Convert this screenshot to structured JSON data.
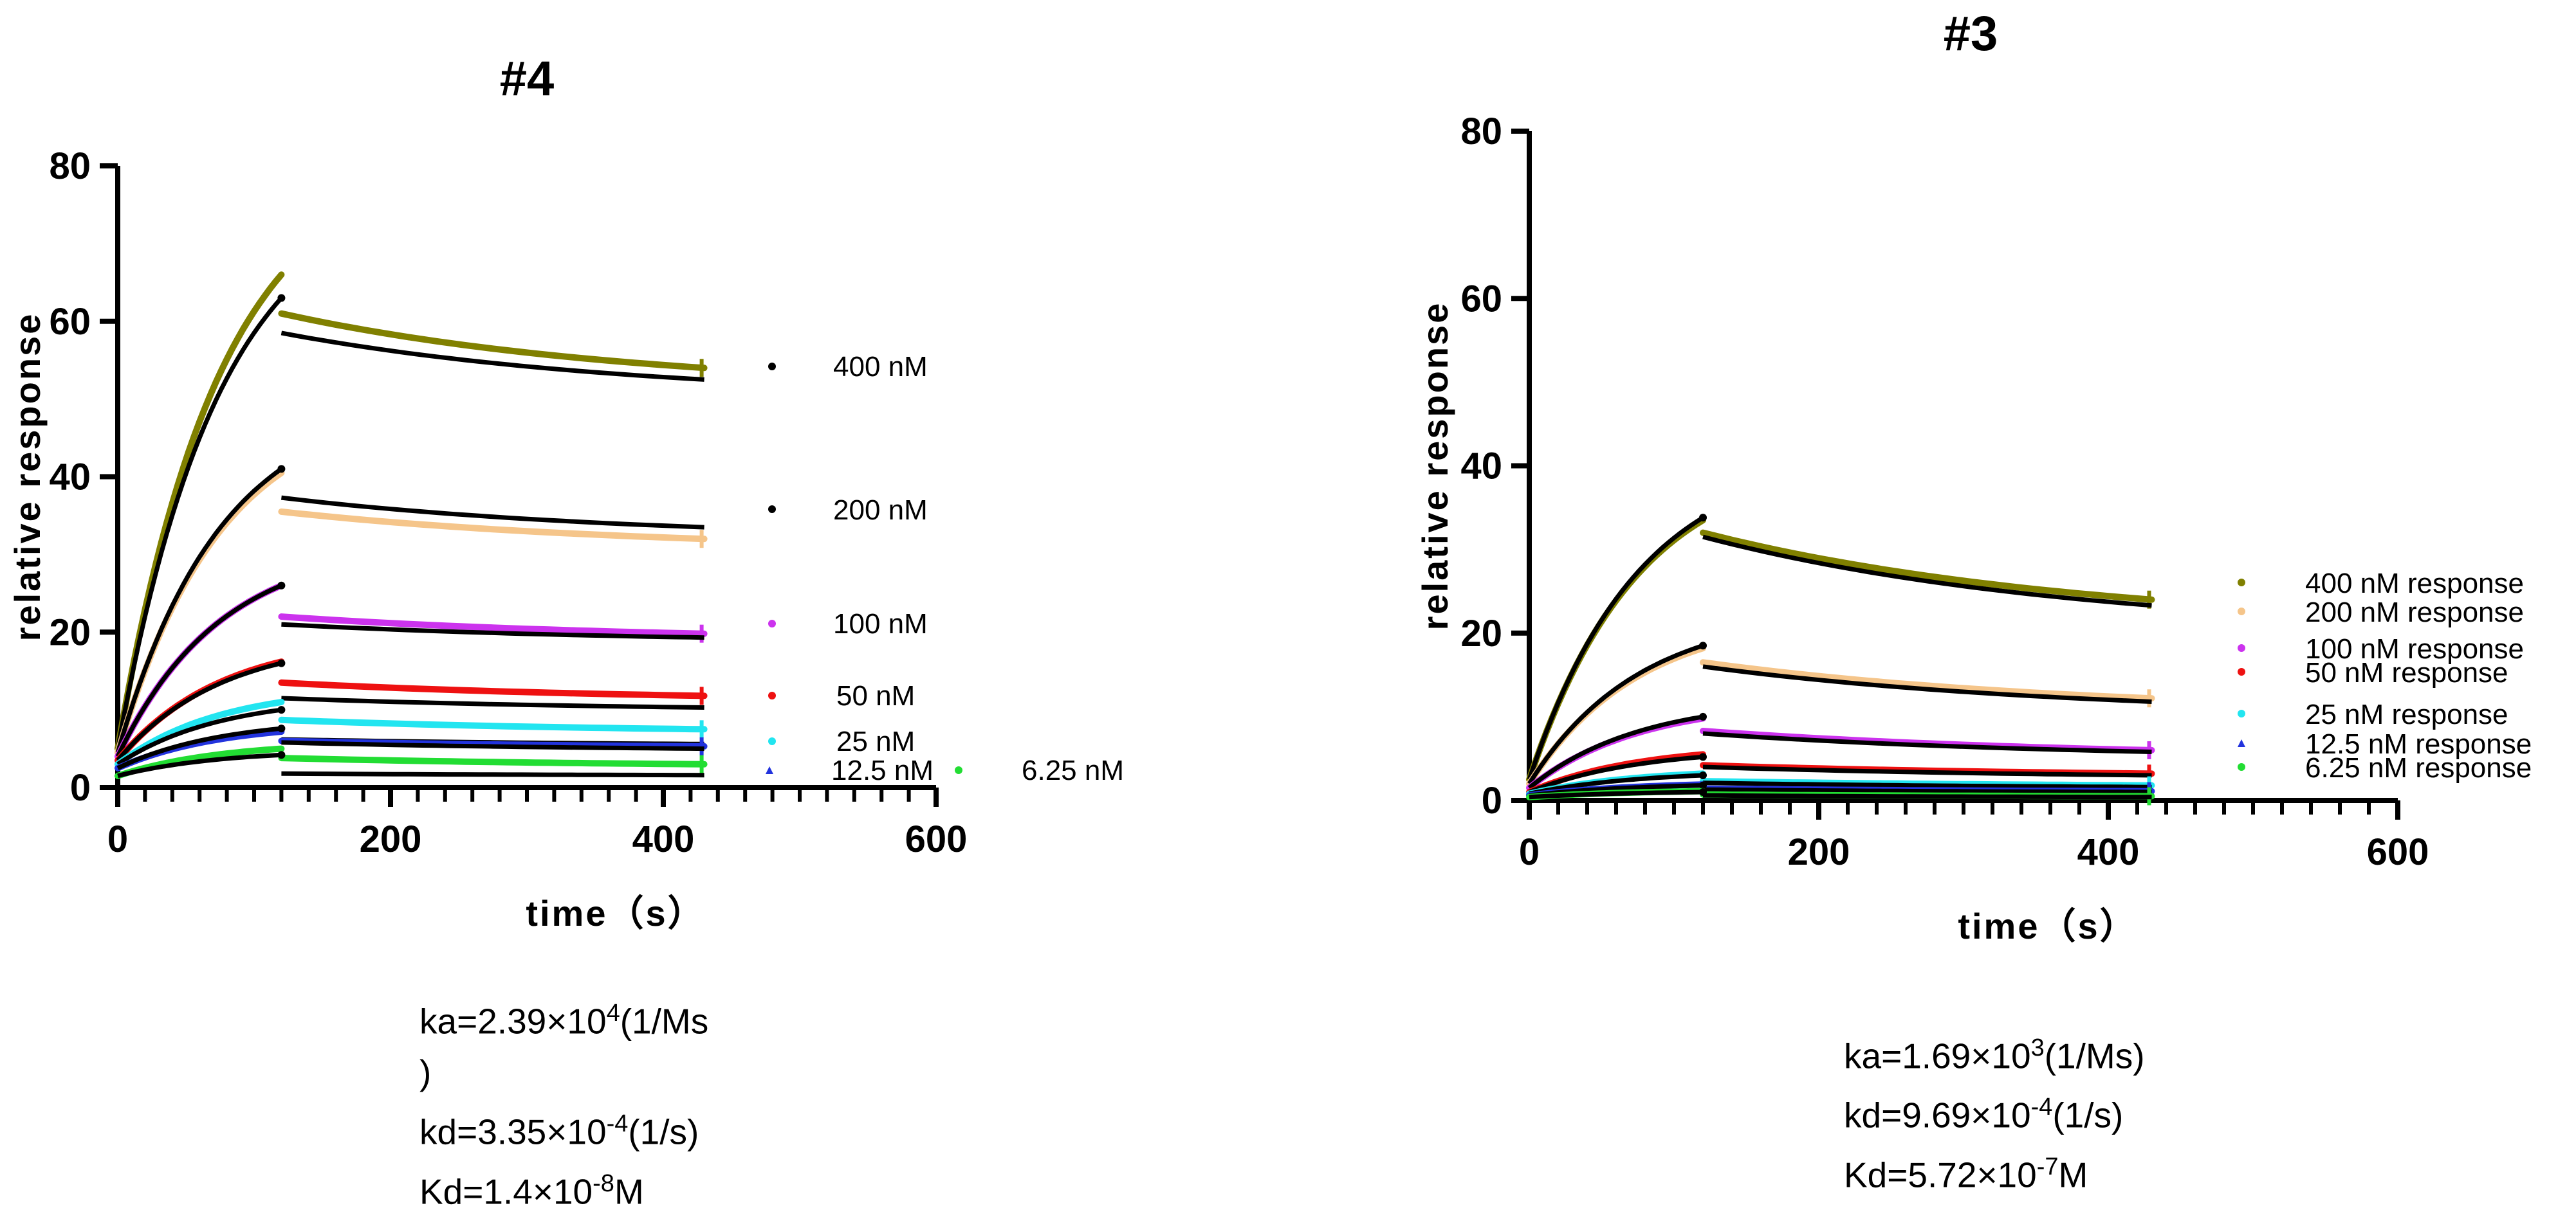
{
  "colors": {
    "400": "#808000",
    "200": "#F5C58A",
    "100": "#CC33EE",
    "50": "#EE1111",
    "25": "#22E5F0",
    "12.5": "#2233DD",
    "6.25": "#22DD33",
    "fit": "#000000"
  },
  "chart_data": [
    {
      "type": "line",
      "title": "#4",
      "xlabel": "time（s）",
      "ylabel": "relative response",
      "xlim": [
        0,
        600
      ],
      "ylim": [
        0,
        80
      ],
      "xticks": [
        "0",
        "200",
        "400",
        "600"
      ],
      "yticks": [
        "0",
        "20",
        "40",
        "60",
        "80"
      ],
      "association_end": 120,
      "dissociation_end": 430,
      "series": [
        {
          "name": "400 nM",
          "color_key": "400",
          "start": 5,
          "assoc_end": 66,
          "dissoc_start": 61,
          "dissoc_end": 54,
          "fit_start": 5,
          "fit_assoc_end": 63,
          "fit_dissoc_start": 58.5,
          "fit_dissoc_end": 52.5
        },
        {
          "name": "200 nM",
          "color_key": "200",
          "start": 4.5,
          "assoc_end": 40.5,
          "dissoc_start": 35.5,
          "dissoc_end": 32,
          "fit_start": 4.5,
          "fit_assoc_end": 41,
          "fit_dissoc_start": 37.3,
          "fit_dissoc_end": 33.5
        },
        {
          "name": "100 nM",
          "color_key": "100",
          "start": 4,
          "assoc_end": 26,
          "dissoc_start": 22,
          "dissoc_end": 19.8,
          "fit_start": 4,
          "fit_assoc_end": 26,
          "fit_dissoc_start": 21,
          "fit_dissoc_end": 19.3
        },
        {
          "name": "50 nM",
          "color_key": "50",
          "start": 3.5,
          "assoc_end": 16.2,
          "dissoc_start": 13.5,
          "dissoc_end": 11.8,
          "fit_start": 3.5,
          "fit_assoc_end": 16,
          "fit_dissoc_start": 11.5,
          "fit_dissoc_end": 10.3
        },
        {
          "name": "25 nM",
          "color_key": "25",
          "start": 3,
          "assoc_end": 11,
          "dissoc_start": 8.7,
          "dissoc_end": 7.5,
          "fit_start": 3,
          "fit_assoc_end": 10,
          "fit_dissoc_start": 6.2,
          "fit_dissoc_end": 5.6
        },
        {
          "name": "12.5 nM",
          "color_key": "12.5",
          "start": 2.5,
          "assoc_end": 7.2,
          "dissoc_start": 6,
          "dissoc_end": 5.3,
          "fit_start": 2.5,
          "fit_assoc_end": 7.6,
          "fit_dissoc_start": 5.8,
          "fit_dissoc_end": 5
        },
        {
          "name": "6.25 nM",
          "color_key": "6.25",
          "start": 1.5,
          "assoc_end": 5,
          "dissoc_start": 3.8,
          "dissoc_end": 3,
          "fit_start": 1.5,
          "fit_assoc_end": 4.2,
          "fit_dissoc_start": 1.8,
          "fit_dissoc_end": 1.6
        }
      ],
      "legend": [
        "400 nM",
        "200 nM",
        "100 nM",
        "50 nM",
        "25 nM",
        "12.5 nM",
        "6.25 nM"
      ],
      "kinetics": {
        "ka": {
          "prefix": "ka=2.39×10",
          "exp": "4",
          "suffix": "(1/Ms",
          "wrap": ")"
        },
        "kd": {
          "prefix": "kd=3.35×10",
          "exp": "-4",
          "suffix": "(1/s)"
        },
        "Kd": {
          "prefix": "Kd=1.4×10",
          "exp": "-8",
          "suffix": "M"
        }
      }
    },
    {
      "type": "line",
      "title": "#3",
      "xlabel": "time（s）",
      "ylabel": "relative response",
      "xlim": [
        0,
        600
      ],
      "ylim": [
        0,
        80
      ],
      "xticks": [
        "0",
        "200",
        "400",
        "600"
      ],
      "yticks": [
        "0",
        "20",
        "40",
        "60",
        "80"
      ],
      "association_end": 120,
      "dissociation_end": 430,
      "series": [
        {
          "name": "400 nM response",
          "color_key": "400",
          "start": 2.5,
          "assoc_end": 33.5,
          "dissoc_start": 32,
          "dissoc_end": 24,
          "fit_start": 2.5,
          "fit_assoc_end": 33.8,
          "fit_dissoc_start": 31.5,
          "fit_dissoc_end": 23.3
        },
        {
          "name": "200 nM response",
          "color_key": "200",
          "start": 2,
          "assoc_end": 18.2,
          "dissoc_start": 16.5,
          "dissoc_end": 12.2,
          "fit_start": 2,
          "fit_assoc_end": 18.5,
          "fit_dissoc_start": 16,
          "fit_dissoc_end": 11.8
        },
        {
          "name": "100 nM response",
          "color_key": "100",
          "start": 1.5,
          "assoc_end": 9.8,
          "dissoc_start": 8.3,
          "dissoc_end": 6,
          "fit_start": 1.5,
          "fit_assoc_end": 10,
          "fit_dissoc_start": 8,
          "fit_dissoc_end": 5.8
        },
        {
          "name": "50 nM response",
          "color_key": "50",
          "start": 1,
          "assoc_end": 5.5,
          "dissoc_start": 4.2,
          "dissoc_end": 3.2,
          "fit_start": 1,
          "fit_assoc_end": 5.2,
          "fit_dissoc_start": 4,
          "fit_dissoc_end": 3
        },
        {
          "name": "25 nM response",
          "color_key": "25",
          "start": 0.8,
          "assoc_end": 3.2,
          "dissoc_start": 2.3,
          "dissoc_end": 1.8,
          "fit_start": 0.8,
          "fit_assoc_end": 3,
          "fit_dissoc_start": 2.1,
          "fit_dissoc_end": 1.6
        },
        {
          "name": "12.5 nM response",
          "color_key": "12.5",
          "start": 0.6,
          "assoc_end": 1.9,
          "dissoc_start": 1.4,
          "dissoc_end": 1.1,
          "fit_start": 0.6,
          "fit_assoc_end": 1.8,
          "fit_dissoc_start": 1.3,
          "fit_dissoc_end": 1
        },
        {
          "name": "6.25 nM response",
          "color_key": "6.25",
          "start": 0.4,
          "assoc_end": 1.1,
          "dissoc_start": 0.7,
          "dissoc_end": 0.5,
          "fit_start": 0.4,
          "fit_assoc_end": 1,
          "fit_dissoc_start": 0.6,
          "fit_dissoc_end": 0.4
        }
      ],
      "legend": [
        "400 nM response",
        "200 nM response",
        "100 nM response",
        "50 nM response",
        "25 nM response",
        "12.5 nM response",
        "6.25 nM response"
      ],
      "kinetics": {
        "ka": {
          "prefix": "ka=1.69×10",
          "exp": "3",
          "suffix": "(1/Ms)"
        },
        "kd": {
          "prefix": "kd=9.69×10",
          "exp": "-4",
          "suffix": "(1/s)"
        },
        "Kd": {
          "prefix": "Kd=5.72×10",
          "exp": "-7",
          "suffix": "M"
        }
      }
    }
  ]
}
